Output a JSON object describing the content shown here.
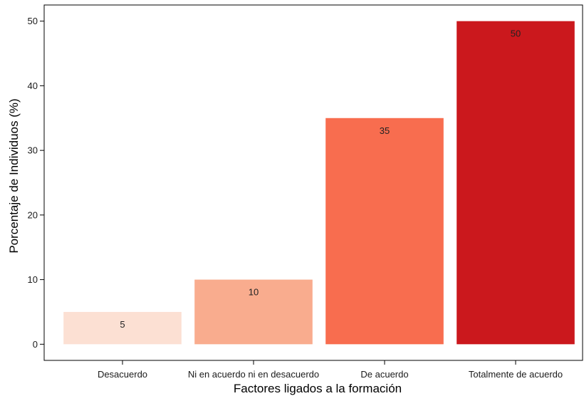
{
  "chart_data": {
    "type": "bar",
    "title": "",
    "xlabel": "Factores ligados a la formación",
    "ylabel": "Porcentaje de Individuos (%)",
    "categories": [
      "Desacuerdo",
      "Ni en acuerdo ni en desacuerdo",
      "De acuerdo",
      "Totalmente de acuerdo"
    ],
    "values": [
      5,
      10,
      35,
      50
    ],
    "data_labels": [
      "5",
      "10",
      "35",
      "50"
    ],
    "colors": [
      "#fce0d3",
      "#f9ac8e",
      "#f86d4f",
      "#cb181d"
    ],
    "ylim": [
      -2.5,
      52.5
    ],
    "yticks": [
      0,
      10,
      20,
      30,
      40,
      50
    ],
    "ytick_labels": [
      "0",
      "10",
      "20",
      "30",
      "40",
      "50"
    ],
    "grid": false,
    "legend": "none"
  }
}
